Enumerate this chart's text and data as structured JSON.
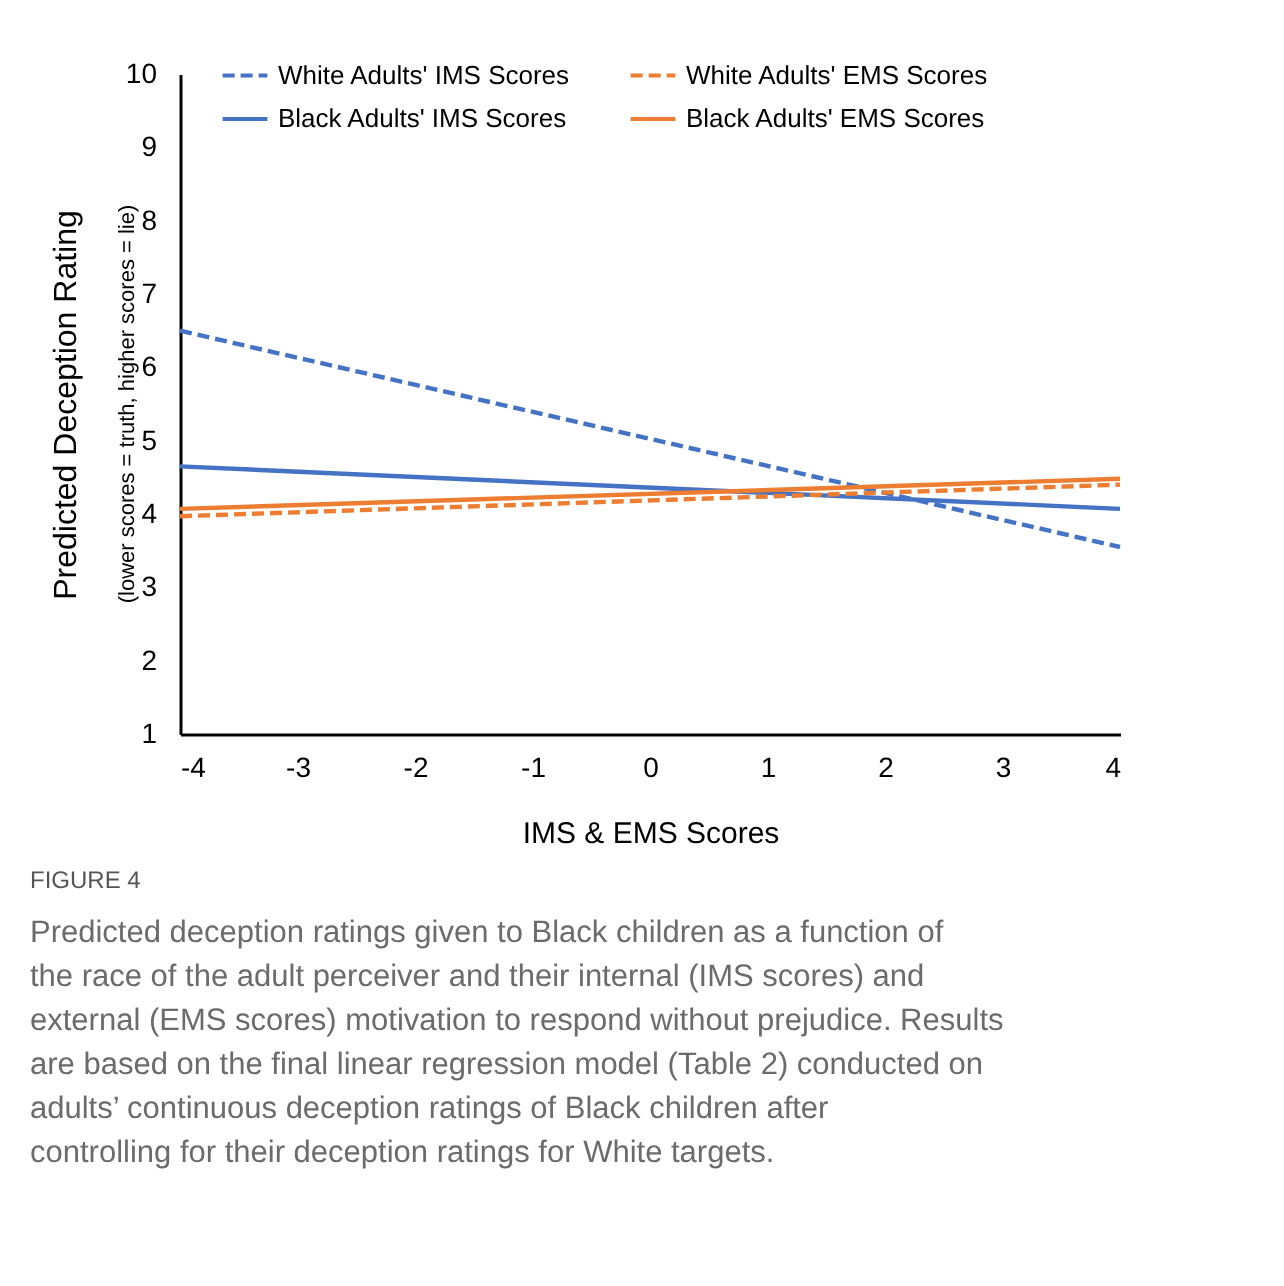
{
  "chart_data": {
    "type": "line",
    "xlabel": "IMS & EMS Scores",
    "ylabel": "Predicted Deception Rating\n(lower scores = truth, higher scores = lie)",
    "x": [
      -4,
      4
    ],
    "xlim": [
      -4,
      4
    ],
    "xticks": [
      -4,
      -3,
      -2,
      -1,
      0,
      1,
      2,
      3,
      4
    ],
    "ylim": [
      1,
      10
    ],
    "yticks": [
      1,
      2,
      3,
      4,
      5,
      6,
      7,
      8,
      9,
      10
    ],
    "grid": false,
    "legend": "top",
    "marker": "none",
    "series": [
      {
        "name": "White Adults' IMS Scores",
        "color": "#4472c4",
        "line_style": "dashed",
        "values": [
          6.5,
          3.55
        ]
      },
      {
        "name": "Black Adults' IMS Scores",
        "color": "#4472c4",
        "line_style": "solid",
        "values": [
          4.65,
          4.07
        ]
      },
      {
        "name": "White Adults' EMS Scores",
        "color": "#ed7d31",
        "line_style": "dashed",
        "values": [
          3.97,
          4.4
        ]
      },
      {
        "name": "Black Adults' EMS Scores",
        "color": "#ed7d31",
        "line_style": "solid",
        "values": [
          4.07,
          4.48
        ]
      }
    ],
    "annotations": [
      "FIGURE 4",
      "Predicted deception ratings given to Black children as a function of the race of the adult perceiver and their internal (IMS scores) and external (EMS scores) motivation to respond without prejudice. Results are based on the final linear regression model (Table 2) conducted on adults’ continuous deception ratings of Black children after controlling for their deception ratings for White targets."
    ]
  }
}
